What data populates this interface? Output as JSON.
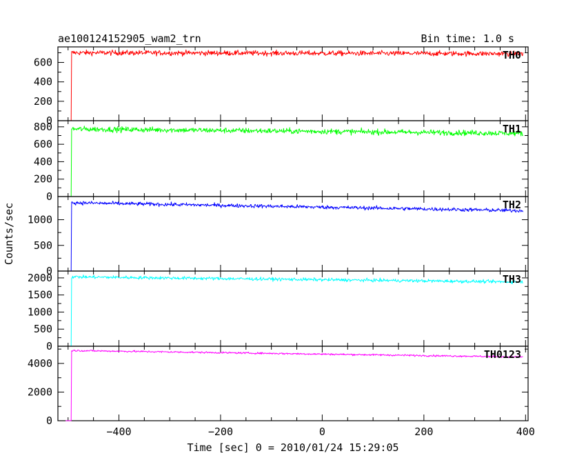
{
  "chart_data": {
    "type": "line",
    "title": "ae100124152905_wam2_trn",
    "subtitle": "Bin time: 1.0 s",
    "xlabel": "Time [sec] 0 = 2010/01/24 15:29:05",
    "ylabel": "Counts/sec",
    "xlim": [
      -520,
      405
    ],
    "xticks": [
      -400,
      -200,
      0,
      200,
      400
    ],
    "xtick_labels": [
      "−400",
      "−200",
      "0",
      "200",
      "400"
    ],
    "grid": false,
    "legend": "none",
    "panels": [
      {
        "name": "TH0",
        "color": "#ff0000",
        "ylim": [
          0,
          760
        ],
        "yticks": [
          0,
          200,
          400,
          600
        ],
        "onset": -493,
        "pre_level": 0,
        "level_start": 700,
        "level_end": 690,
        "noise": 25
      },
      {
        "name": "TH1",
        "color": "#00ff00",
        "ylim": [
          0,
          870
        ],
        "yticks": [
          0,
          200,
          400,
          600,
          800
        ],
        "onset": -493,
        "pre_level": 0,
        "level_start": 775,
        "level_end": 725,
        "noise": 30
      },
      {
        "name": "TH2",
        "color": "#0000ff",
        "ylim": [
          0,
          1450
        ],
        "yticks": [
          0,
          500,
          1000
        ],
        "onset": -493,
        "pre_level": 0,
        "level_start": 1330,
        "level_end": 1175,
        "noise": 35
      },
      {
        "name": "TH3",
        "color": "#00ffff",
        "ylim": [
          0,
          2200
        ],
        "yticks": [
          0,
          500,
          1000,
          1500,
          2000
        ],
        "onset": -493,
        "pre_level": 0,
        "level_start": 2030,
        "level_end": 1880,
        "noise": 45
      },
      {
        "name": "TH0123",
        "color": "#ff00ff",
        "ylim": [
          0,
          5200
        ],
        "yticks": [
          0,
          2000,
          4000
        ],
        "onset": -493,
        "pre_level": 0,
        "level_start": 4900,
        "level_end": 4450,
        "noise": 60
      }
    ]
  }
}
